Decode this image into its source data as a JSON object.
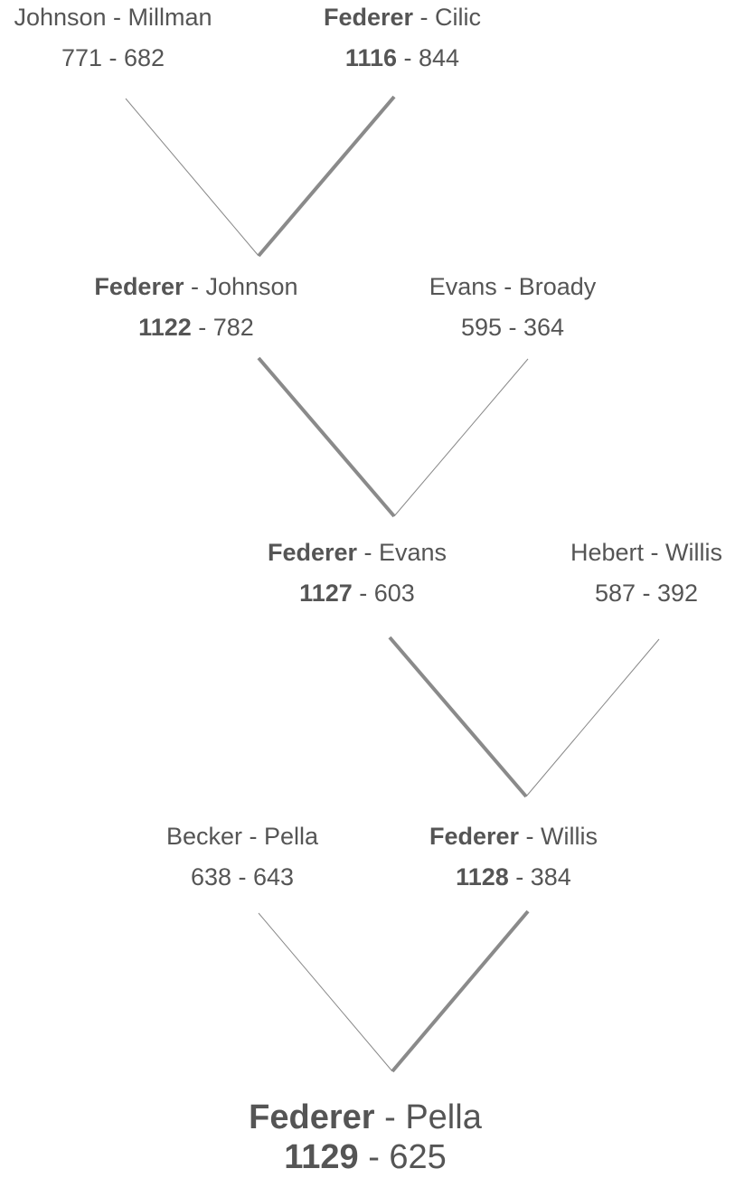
{
  "colors": {
    "text": "#555555",
    "connector": "#8a8a8a",
    "background": "#ffffff"
  },
  "bracket": {
    "matches": [
      {
        "winner_name": "",
        "loser_name": "Johnson - Millman",
        "winner_score": "",
        "loser_score": "771 - 682"
      },
      {
        "winner_name": "Federer",
        "loser_name": " - Cilic",
        "winner_score": "1116",
        "loser_score": " - 844"
      },
      {
        "winner_name": "Federer",
        "loser_name": " - Johnson",
        "winner_score": "1122",
        "loser_score": " - 782"
      },
      {
        "winner_name": "",
        "loser_name": "Evans - Broady",
        "winner_score": "",
        "loser_score": "595 - 364"
      },
      {
        "winner_name": "Federer",
        "loser_name": " - Evans",
        "winner_score": "1127",
        "loser_score": " - 603"
      },
      {
        "winner_name": "",
        "loser_name": "Hebert - Willis",
        "winner_score": "",
        "loser_score": "587 - 392"
      },
      {
        "winner_name": "",
        "loser_name": "Becker - Pella",
        "winner_score": "",
        "loser_score": "638 - 643"
      },
      {
        "winner_name": "Federer",
        "loser_name": " - Willis",
        "winner_score": "1128",
        "loser_score": " - 384"
      },
      {
        "winner_name": "Federer",
        "loser_name": " - Pella",
        "winner_score": "1129",
        "loser_score": " - 625"
      }
    ]
  }
}
